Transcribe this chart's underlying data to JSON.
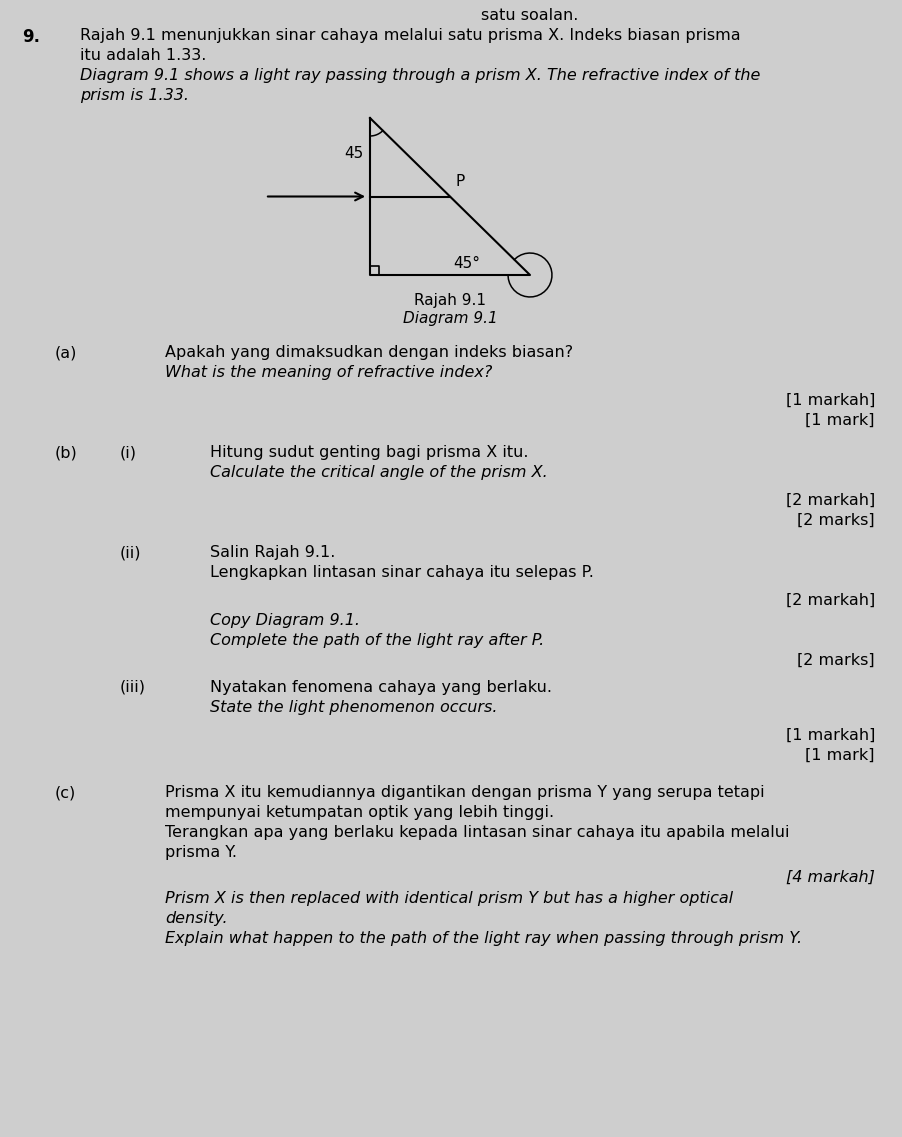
{
  "bg_color": "#cecece",
  "header_text": "satu soalan.",
  "question_number": "9.",
  "malay_intro_1": "Rajah 9.1 menunjukkan sinar cahaya melalui satu prisma X. Indeks biasan prisma",
  "malay_intro_2": "itu adalah 1.33.",
  "english_intro_1": "Diagram 9.1 shows a light ray passing through a prism X. The refractive index of the",
  "english_intro_2": "prism is 1.33.",
  "diagram_label_malay": "Rajah 9.1",
  "diagram_label_english": "Diagram 9.1",
  "angle_top": "45",
  "angle_bottom": "45°",
  "point_P": "P",
  "part_a_label": "(a)",
  "part_a_malay": "Apakah yang dimaksudkan dengan indeks biasan?",
  "part_a_english": "What is the meaning of refractive index?",
  "mark_1_malay": "[1 markah]",
  "mark_1_eng": "[1 mark]",
  "part_b_label": "(b)",
  "part_bi_label": "(i)",
  "part_bi_malay": "Hitung sudut genting bagi prisma X itu.",
  "part_bi_english": "Calculate the critical angle of the prism X.",
  "mark_2_malay": "[2 markah]",
  "mark_2_eng": "[2 marks]",
  "part_bii_label": "(ii)",
  "part_bii_malay_1": "Salin Rajah 9.1.",
  "part_bii_malay_2": "Lengkapkan lintasan sinar cahaya itu selepas P.",
  "part_bii_mark_malay": "[2 markah]",
  "part_bii_eng_1": "Copy Diagram 9.1.",
  "part_bii_eng_2": "Complete the path of the light ray after P.",
  "part_bii_mark_eng": "[2 marks]",
  "part_biii_label": "(iii)",
  "part_biii_malay": "Nyatakan fenomena cahaya yang berlaku.",
  "part_biii_english": "State the light phenomenon occurs.",
  "mark_1b_malay": "[1 markah]",
  "mark_1b_eng": "[1 mark]",
  "part_c_label": "(c)",
  "part_c_malay_1": "Prisma X itu kemudiannya digantikan dengan prisma Y yang serupa tetapi",
  "part_c_malay_2": "mempunyai ketumpatan optik yang lebih tinggi.",
  "part_c_malay_3": "Terangkan apa yang berlaku kepada lintasan sinar cahaya itu apabila melalui",
  "part_c_malay_4": "prisma Y.",
  "mark_4_malay": "[4 markah]",
  "part_c_eng_1": "Prism X is then replaced with identical prism Y but has a higher optical",
  "part_c_eng_2": "density.",
  "part_c_eng_3": "Explain what happen to the path of the light ray when passing through prism Y."
}
